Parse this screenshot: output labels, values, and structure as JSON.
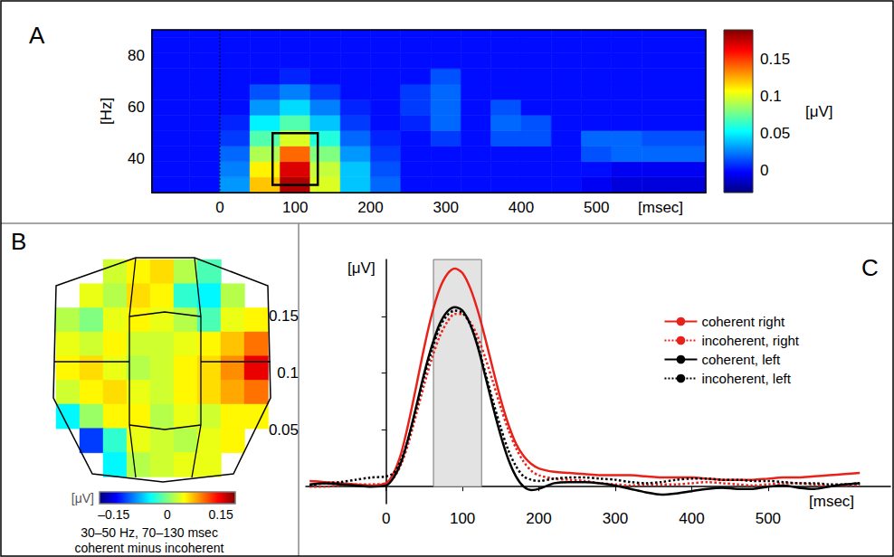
{
  "chart_data": [
    {
      "panel": "A",
      "type": "heatmap",
      "x": [
        -60,
        -20,
        20,
        60,
        100,
        140,
        180,
        220,
        260,
        300,
        340,
        380,
        420,
        460,
        500,
        540,
        580
      ],
      "y": [
        30,
        36,
        42,
        48,
        54,
        60,
        66,
        72,
        78,
        84,
        90
      ],
      "values": [
        [
          0,
          0,
          0.03,
          0.12,
          0.18,
          0.1,
          0.04,
          0.02,
          0,
          0,
          0,
          0,
          0,
          0,
          -0.005,
          -0.01,
          -0.01
        ],
        [
          0,
          0,
          0.025,
          0.11,
          0.17,
          0.095,
          0.04,
          0.015,
          0,
          0,
          0,
          0,
          0,
          0,
          0,
          -0.005,
          -0.005
        ],
        [
          0,
          0,
          0.02,
          0.09,
          0.14,
          0.08,
          0.03,
          0.01,
          0,
          0,
          0,
          0,
          0,
          0,
          0.015,
          0.02,
          0.02
        ],
        [
          0,
          0,
          0.01,
          0.07,
          0.1,
          0.06,
          0.02,
          0.005,
          0,
          0.01,
          0,
          0.015,
          0.015,
          0,
          0.02,
          0.02,
          0.015
        ],
        [
          0,
          0,
          0.005,
          0.05,
          0.07,
          0.04,
          0.01,
          0,
          0.005,
          0.02,
          0,
          0.02,
          0.015,
          0,
          0,
          0,
          0
        ],
        [
          0,
          0,
          0,
          0.03,
          0.045,
          0.025,
          0.005,
          0,
          0.01,
          0.02,
          0,
          0.015,
          0,
          0,
          0,
          0,
          0
        ],
        [
          0,
          0,
          0,
          0.015,
          0.025,
          0.01,
          0,
          0,
          0.01,
          0.02,
          0,
          0,
          0,
          0,
          0,
          0,
          0
        ],
        [
          0,
          0,
          0,
          0,
          0.005,
          0,
          0,
          0,
          0,
          0.015,
          0,
          0,
          0,
          0,
          0,
          0,
          0
        ],
        [
          0,
          0,
          0,
          0,
          0,
          0,
          0,
          0,
          0,
          0,
          0,
          0,
          0,
          0,
          0,
          0,
          0
        ],
        [
          0,
          0,
          0,
          0,
          0,
          0,
          0,
          0,
          0,
          0,
          0,
          0,
          0,
          0,
          0,
          0,
          0
        ],
        [
          0,
          0,
          0,
          0,
          0,
          0,
          0,
          0,
          0,
          0,
          0,
          0,
          0,
          0,
          0,
          0,
          0
        ]
      ],
      "xlim": [
        -90,
        645
      ],
      "ylim": [
        27,
        90
      ],
      "xticks": [
        0,
        100,
        200,
        300,
        400,
        500
      ],
      "yticks": [
        40,
        60,
        80
      ],
      "xlabel": "[msec]",
      "ylabel": "[Hz]",
      "colorbar": {
        "label": "[μV]",
        "range": [
          -0.03,
          0.19
        ],
        "ticks": [
          0,
          0.05,
          0.1,
          0.15
        ]
      },
      "box": {
        "x": [
          70,
          130
        ],
        "y": [
          30,
          50
        ]
      },
      "onset": 0
    },
    {
      "panel": "B",
      "type": "topomap",
      "values": [
        [
          null,
          null,
          0.03,
          0.05,
          0.06,
          0.02,
          -0.02,
          null,
          null
        ],
        [
          null,
          0.04,
          0.02,
          0.06,
          0.05,
          -0.03,
          -0.05,
          0.02,
          null
        ],
        [
          0.02,
          0,
          0.04,
          0.05,
          0.04,
          0.02,
          -0.02,
          0.04,
          0.05
        ],
        [
          0.04,
          0.03,
          0.05,
          0.03,
          0.03,
          0.04,
          0.05,
          0.07,
          0.1
        ],
        [
          0.05,
          0.06,
          0.04,
          0.02,
          0.03,
          0.05,
          0.06,
          0.09,
          0.15
        ],
        [
          0.03,
          0.05,
          0.06,
          0.04,
          0.03,
          0.05,
          0.06,
          0.08,
          0.1
        ],
        [
          -0.05,
          0.01,
          0.05,
          0.05,
          0.02,
          0.04,
          0.03,
          0.05,
          0.05
        ],
        [
          null,
          -0.12,
          -0.03,
          0.04,
          0.03,
          0.02,
          0.04,
          0.05,
          null
        ],
        [
          null,
          null,
          -0.05,
          0.02,
          0.03,
          0.04,
          0.04,
          null,
          null
        ]
      ],
      "colorbar": {
        "label": "[μV]",
        "range": [
          -0.19,
          0.19
        ],
        "ticks": [
          {
            "value": -0.15,
            "label": "–0.15"
          },
          0,
          0.15
        ]
      },
      "caption": [
        "30–50 Hz, 70–130 msec",
        "coherent minus incoherent"
      ]
    },
    {
      "panel": "C",
      "type": "line",
      "x": [
        -100,
        -80,
        -60,
        -40,
        -20,
        0,
        10,
        20,
        30,
        40,
        50,
        60,
        70,
        80,
        90,
        100,
        110,
        120,
        130,
        140,
        150,
        160,
        170,
        180,
        190,
        200,
        220,
        240,
        260,
        280,
        300,
        320,
        340,
        360,
        380,
        400,
        420,
        440,
        460,
        480,
        500,
        520,
        540,
        560,
        580,
        600,
        620
      ],
      "series": [
        {
          "name": "coherent right",
          "color": "#e8221b",
          "line_style": "solid",
          "values": [
            0.005,
            0.004,
            0.003,
            0.002,
            0.001,
            0.003,
            0.012,
            0.03,
            0.058,
            0.09,
            0.123,
            0.152,
            0.174,
            0.187,
            0.192,
            0.188,
            0.175,
            0.155,
            0.13,
            0.103,
            0.077,
            0.055,
            0.038,
            0.027,
            0.02,
            0.016,
            0.013,
            0.012,
            0.011,
            0.01,
            0.01,
            0.01,
            0.009,
            0.008,
            0.008,
            0.008,
            0.007,
            0.006,
            0.006,
            0.006,
            0.007,
            0.008,
            0.008,
            0.009,
            0.01,
            0.011,
            0.012
          ]
        },
        {
          "name": "incoherent, right",
          "color": "#e8221b",
          "line_style": "dotted",
          "values": [
            0,
            0,
            0.001,
            0.002,
            0.002,
            0.003,
            0.008,
            0.02,
            0.04,
            0.065,
            0.09,
            0.113,
            0.132,
            0.145,
            0.152,
            0.152,
            0.145,
            0.132,
            0.113,
            0.092,
            0.07,
            0.05,
            0.034,
            0.022,
            0.014,
            0.01,
            0.007,
            0.006,
            0.005,
            0.003,
            0.002,
            0.001,
            0.002,
            0.002,
            0.002,
            0.003,
            0.004,
            0.003,
            0.002,
            0.001,
            0.002,
            0.003,
            0.003,
            0.002,
            0.001,
            0.001,
            0.002
          ]
        },
        {
          "name": "coherent, left",
          "color": "#000000",
          "line_style": "solid",
          "values": [
            0.002,
            0.003,
            0.002,
            0.001,
            0,
            0.001,
            0.008,
            0.022,
            0.045,
            0.072,
            0.1,
            0.124,
            0.143,
            0.154,
            0.158,
            0.155,
            0.143,
            0.123,
            0.097,
            0.07,
            0.045,
            0.024,
            0.009,
            0,
            -0.003,
            -0.002,
            0.003,
            0.004,
            0.004,
            0.003,
            0.001,
            -0.002,
            -0.005,
            -0.007,
            -0.006,
            -0.004,
            -0.002,
            -0.001,
            -0.002,
            -0.002,
            0,
            0.001,
            -0.001,
            -0.002,
            0,
            0.002,
            0.003
          ]
        },
        {
          "name": "incoherent, left",
          "color": "#000000",
          "line_style": "dotted",
          "values": [
            0.001,
            0.003,
            0.004,
            0.006,
            0.008,
            0.009,
            0.012,
            0.024,
            0.044,
            0.07,
            0.097,
            0.12,
            0.14,
            0.151,
            0.155,
            0.153,
            0.143,
            0.125,
            0.1,
            0.075,
            0.052,
            0.032,
            0.018,
            0.009,
            0.006,
            0.005,
            0.007,
            0.008,
            0.008,
            0.007,
            0.006,
            0.004,
            0.003,
            0.004,
            0.006,
            0.007,
            0.007,
            0.006,
            0.006,
            0.005,
            0.005,
            0.004,
            0.003,
            0.003,
            0.002,
            0.002,
            0.003
          ]
        }
      ],
      "xlim": [
        -105,
        660
      ],
      "ylim": [
        -0.015,
        0.2
      ],
      "xticks": [
        0,
        100,
        200,
        300,
        400,
        500
      ],
      "yticks": [
        0.05,
        0.1,
        0.15
      ],
      "xlabel": "[msec]",
      "ylabel": "[μV]",
      "legend": "upper right",
      "shade": {
        "x": [
          62,
          125
        ],
        "y": [
          0,
          0.2
        ]
      }
    }
  ]
}
